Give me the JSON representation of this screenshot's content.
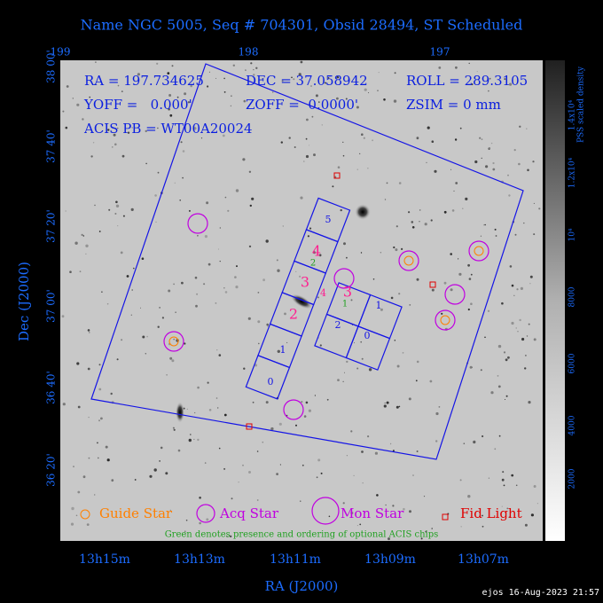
{
  "title": "Name NGC 5005, Seq # 704301, Obsid 28494, ST Scheduled",
  "top_ticks": [
    "199",
    "198",
    "197"
  ],
  "left_ticks": [
    "38 00'",
    "37 40'",
    "37 20'",
    "37 00'",
    "36 40'",
    "36 20'"
  ],
  "bottom_ticks": [
    "13h15m",
    "13h13m",
    "13h11m",
    "13h09m",
    "13h07m"
  ],
  "x_label": "RA (J2000)",
  "y_label": "Dec (J2000)",
  "info": [
    "RA = 197.734625",
    "DEC = 37.058942",
    "ROLL = 289.3105",
    "YOFF =   0.000'",
    "ZOFF =  0.0000'",
    "ZSIM = 0 mm",
    "ACIS PB = WT00A20024"
  ],
  "s_chips": [
    "5",
    "4",
    "3",
    "2",
    "1",
    "0"
  ],
  "s_chip_marks": [
    "4",
    "3",
    "2"
  ],
  "s_chip_optional": [
    "2",
    "1"
  ],
  "i_chips": [
    "1",
    "2",
    "0"
  ],
  "i_chip_mark": "3",
  "i_chip_optional": "1",
  "legend": [
    "Guide Star",
    "Acq Star",
    "Mon Star",
    "Fid Light"
  ],
  "note": "Green denotes presence and ordering of optional ACIS chips",
  "colorbar": {
    "title": "PSS scaled density",
    "ticks": [
      "2000",
      "4000",
      "6000",
      "8000",
      "10⁴",
      "1.2x10⁴",
      "1.4x10⁴"
    ]
  },
  "footer": "ejos 16-Aug-2023 21:57"
}
